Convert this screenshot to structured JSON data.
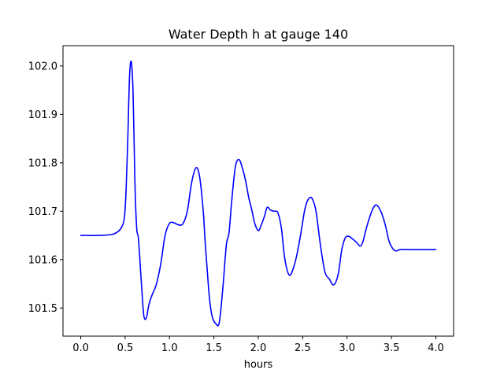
{
  "chart_data": {
    "type": "line",
    "title": "Water Depth h at gauge 140",
    "xlabel": "hours",
    "ylabel": "",
    "xlim": [
      -0.2,
      4.2
    ],
    "ylim": [
      101.442,
      102.042
    ],
    "xticks": [
      0.0,
      0.5,
      1.0,
      1.5,
      2.0,
      2.5,
      3.0,
      3.5,
      4.0
    ],
    "xtick_labels": [
      "0.0",
      "0.5",
      "1.0",
      "1.5",
      "2.0",
      "2.5",
      "3.0",
      "3.5",
      "4.0"
    ],
    "yticks": [
      101.5,
      101.6,
      101.7,
      101.8,
      101.9,
      102.0
    ],
    "ytick_labels": [
      "101.5",
      "101.6",
      "101.7",
      "101.8",
      "101.9",
      "102.0"
    ],
    "grid": false,
    "legend": "none",
    "colors": {
      "line": "#0000ff",
      "axes": "#000000",
      "background": "#ffffff"
    },
    "series": [
      {
        "name": "",
        "x": [
          0.0,
          0.2,
          0.35,
          0.42,
          0.46,
          0.49,
          0.51,
          0.53,
          0.55,
          0.57,
          0.59,
          0.61,
          0.63,
          0.65,
          0.68,
          0.71,
          0.74,
          0.76,
          0.78,
          0.81,
          0.85,
          0.9,
          0.95,
          1.0,
          1.05,
          1.1,
          1.15,
          1.2,
          1.25,
          1.3,
          1.34,
          1.38,
          1.4,
          1.42,
          1.45,
          1.48,
          1.52,
          1.56,
          1.6,
          1.64,
          1.67,
          1.7,
          1.74,
          1.78,
          1.82,
          1.86,
          1.89,
          1.91,
          1.93,
          1.96,
          2.0,
          2.03,
          2.07,
          2.1,
          2.14,
          2.18,
          2.22,
          2.26,
          2.3,
          2.35,
          2.4,
          2.44,
          2.48,
          2.52,
          2.55,
          2.58,
          2.61,
          2.65,
          2.7,
          2.75,
          2.8,
          2.85,
          2.9,
          2.94,
          2.98,
          3.02,
          3.06,
          3.11,
          3.15,
          3.18,
          3.21,
          3.25,
          3.29,
          3.33,
          3.38,
          3.43,
          3.47,
          3.51,
          3.55,
          3.6,
          3.64,
          3.69,
          3.72,
          3.75,
          3.78,
          3.82,
          3.86,
          3.9,
          3.94,
          3.97,
          4.0
        ],
        "y": [
          101.65,
          101.65,
          101.652,
          101.658,
          101.667,
          101.685,
          101.74,
          101.85,
          101.98,
          102.008,
          101.94,
          101.76,
          101.665,
          101.643,
          101.56,
          101.485,
          101.48,
          101.5,
          101.515,
          101.53,
          101.548,
          101.59,
          101.65,
          101.675,
          101.676,
          101.672,
          101.674,
          101.7,
          101.76,
          101.79,
          101.77,
          101.7,
          101.64,
          101.59,
          101.52,
          101.483,
          101.468,
          101.47,
          101.54,
          101.63,
          101.655,
          101.72,
          101.79,
          101.807,
          101.79,
          101.76,
          101.73,
          101.715,
          101.7,
          101.675,
          101.66,
          101.67,
          101.69,
          101.708,
          101.702,
          101.7,
          101.697,
          101.665,
          101.6,
          101.568,
          101.585,
          101.615,
          101.655,
          101.7,
          101.72,
          101.728,
          101.725,
          101.7,
          101.63,
          101.575,
          101.56,
          101.548,
          101.57,
          101.62,
          101.645,
          101.648,
          101.643,
          101.635,
          101.628,
          101.638,
          101.66,
          101.685,
          101.705,
          101.713,
          101.7,
          101.672,
          101.64,
          101.624,
          101.618,
          101.621,
          101.621,
          101.621,
          101.621,
          101.621,
          101.621,
          101.621,
          101.621,
          101.621,
          101.621,
          101.621,
          101.621
        ]
      }
    ]
  }
}
